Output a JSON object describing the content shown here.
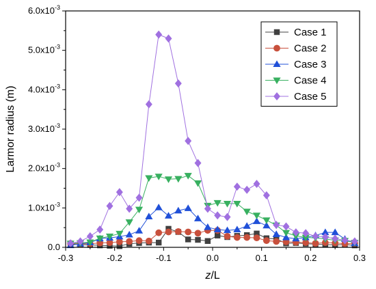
{
  "chart_data": {
    "type": "line",
    "xlabel_main": "z",
    "xlabel_rest": "/L",
    "ylabel": "Larmor radius (m)",
    "xlim": [
      -0.3,
      0.3
    ],
    "ylim": [
      0,
      0.006
    ],
    "xticks": [
      {
        "value": -0.3,
        "label": "-0.3"
      },
      {
        "value": -0.2,
        "label": "-0.2"
      },
      {
        "value": -0.1,
        "label": "-0.1"
      },
      {
        "value": 0.0,
        "label": "0.0"
      },
      {
        "value": 0.1,
        "label": "0.1"
      },
      {
        "value": 0.2,
        "label": "0.2"
      },
      {
        "value": 0.3,
        "label": "0.3"
      }
    ],
    "yticks": [
      {
        "value": 0.0,
        "mant": "0.0",
        "exp": ""
      },
      {
        "value": 0.001,
        "mant": "1.0x10",
        "exp": "-3"
      },
      {
        "value": 0.002,
        "mant": "2.0x10",
        "exp": "-3"
      },
      {
        "value": 0.003,
        "mant": "3.0x10",
        "exp": "-3"
      },
      {
        "value": 0.004,
        "mant": "4.0x10",
        "exp": "-3"
      },
      {
        "value": 0.005,
        "mant": "5.0x10",
        "exp": "-3"
      },
      {
        "value": 0.006,
        "mant": "6.0x10",
        "exp": "-3"
      }
    ],
    "x": [
      -0.29,
      -0.27,
      -0.25,
      -0.23,
      -0.21,
      -0.19,
      -0.17,
      -0.15,
      -0.13,
      -0.11,
      -0.09,
      -0.07,
      -0.05,
      -0.03,
      -0.01,
      0.01,
      0.03,
      0.05,
      0.07,
      0.09,
      0.11,
      0.13,
      0.15,
      0.17,
      0.19,
      0.21,
      0.23,
      0.25,
      0.27,
      0.29
    ],
    "legend_position": "top-right",
    "series": [
      {
        "name": "Case 1",
        "marker": "square",
        "color": "#404040",
        "values": [
          8e-05,
          7e-05,
          6e-05,
          5e-05,
          4e-05,
          3e-05,
          9e-05,
          0.00011,
          0.00012,
          0.00012,
          0.00047,
          0.00039,
          0.0002,
          0.00019,
          0.00016,
          0.0003,
          0.00026,
          0.00029,
          0.00031,
          0.00035,
          0.00023,
          0.00021,
          0.0001,
          0.00011,
          9e-05,
          8e-05,
          7e-05,
          6e-05,
          7e-05,
          5e-05
        ]
      },
      {
        "name": "Case 2",
        "marker": "circle",
        "color": "#c8503c",
        "values": [
          0.0001,
          9e-05,
          9e-05,
          0.00011,
          0.00012,
          0.00014,
          0.00015,
          0.00017,
          0.00016,
          0.00037,
          0.00039,
          0.0004,
          0.00039,
          0.00036,
          0.00043,
          0.00043,
          0.00028,
          0.00025,
          0.00025,
          0.00024,
          0.00017,
          0.00015,
          0.00014,
          0.00013,
          0.00012,
          0.0001,
          0.00012,
          0.00011,
          9e-05,
          0.0001
        ]
      },
      {
        "name": "Case 3",
        "marker": "triangle-up",
        "color": "#2050d8",
        "values": [
          5e-05,
          9e-05,
          0.00012,
          0.00022,
          0.00024,
          0.00027,
          0.00032,
          0.00042,
          0.00078,
          0.00101,
          0.0008,
          0.00093,
          0.00099,
          0.00073,
          0.00051,
          0.00045,
          0.00043,
          0.00045,
          0.00054,
          0.00066,
          0.00055,
          0.00033,
          0.00025,
          0.00022,
          0.00025,
          0.0003,
          0.00038,
          0.00038,
          0.00021,
          0.0001
        ]
      },
      {
        "name": "Case 4",
        "marker": "triangle-down",
        "color": "#38b060",
        "values": [
          0.0001,
          0.00011,
          0.00013,
          0.00023,
          0.00028,
          0.00035,
          0.00064,
          0.00096,
          0.00176,
          0.0018,
          0.00173,
          0.00174,
          0.00182,
          0.00163,
          0.00106,
          0.00113,
          0.00111,
          0.00111,
          0.00091,
          0.00081,
          0.00069,
          0.00056,
          0.00037,
          0.00029,
          0.00025,
          0.00024,
          0.00021,
          0.00018,
          0.00017,
          0.00012
        ]
      },
      {
        "name": "Case 5",
        "marker": "diamond",
        "color": "#a070e0",
        "values": [
          0.0001,
          0.00015,
          0.00028,
          0.00045,
          0.00105,
          0.0014,
          0.00098,
          0.00126,
          0.00363,
          0.0054,
          0.0053,
          0.00416,
          0.0027,
          0.00214,
          0.00098,
          0.00081,
          0.00077,
          0.00154,
          0.00146,
          0.00161,
          0.00132,
          0.00057,
          0.00053,
          0.00038,
          0.00036,
          0.00028,
          0.00026,
          0.00022,
          0.00018,
          0.00015
        ]
      }
    ]
  }
}
